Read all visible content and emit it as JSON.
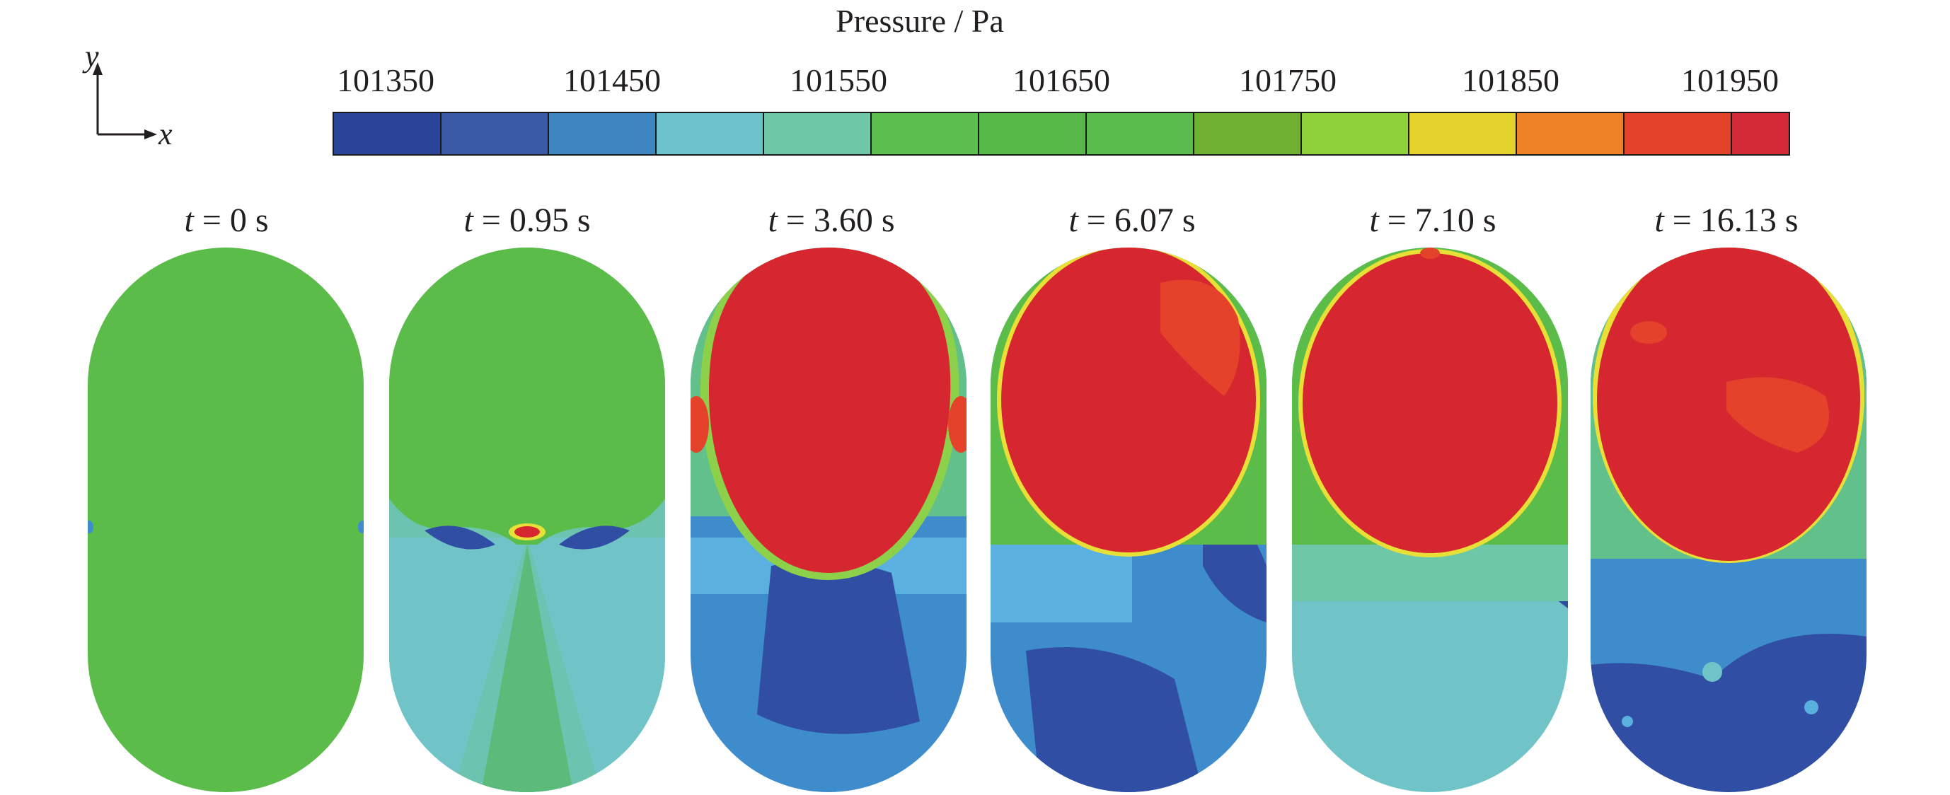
{
  "colorbar": {
    "title": "Pressure / Pa",
    "tick_labels": [
      "101350",
      "101450",
      "101550",
      "101650",
      "101750",
      "101850",
      "101950"
    ],
    "colors": [
      "#2a4597",
      "#3a5aa8",
      "#3d86c2",
      "#6cc3cc",
      "#6ec8a8",
      "#5bbf50",
      "#56b948",
      "#58bd4c",
      "#6fb131",
      "#8fd13b",
      "#e5d22c",
      "#f08226",
      "#e5422c",
      "#d42a35"
    ]
  },
  "axes": {
    "y": "y",
    "x": "x"
  },
  "panels": [
    {
      "time_var": "t",
      "time_value": "= 0 s"
    },
    {
      "time_var": "t",
      "time_value": "= 0.95 s"
    },
    {
      "time_var": "t",
      "time_value": "= 3.60 s"
    },
    {
      "time_var": "t",
      "time_value": "= 6.07 s"
    },
    {
      "time_var": "t",
      "time_value": "= 7.10 s"
    },
    {
      "time_var": "t",
      "time_value": "= 16.13 s"
    }
  ],
  "field_colors": {
    "green": "#5cbc4a",
    "deep_blue": "#2f4ea4",
    "mid_blue": "#3f8ccc",
    "light_blue": "#5ab0de",
    "cyan": "#70c4c8",
    "teal_green": "#62c08a",
    "red": "#d6262f",
    "orange_red": "#e5422c",
    "yellow": "#e8e036",
    "light_green": "#8dd04a"
  }
}
